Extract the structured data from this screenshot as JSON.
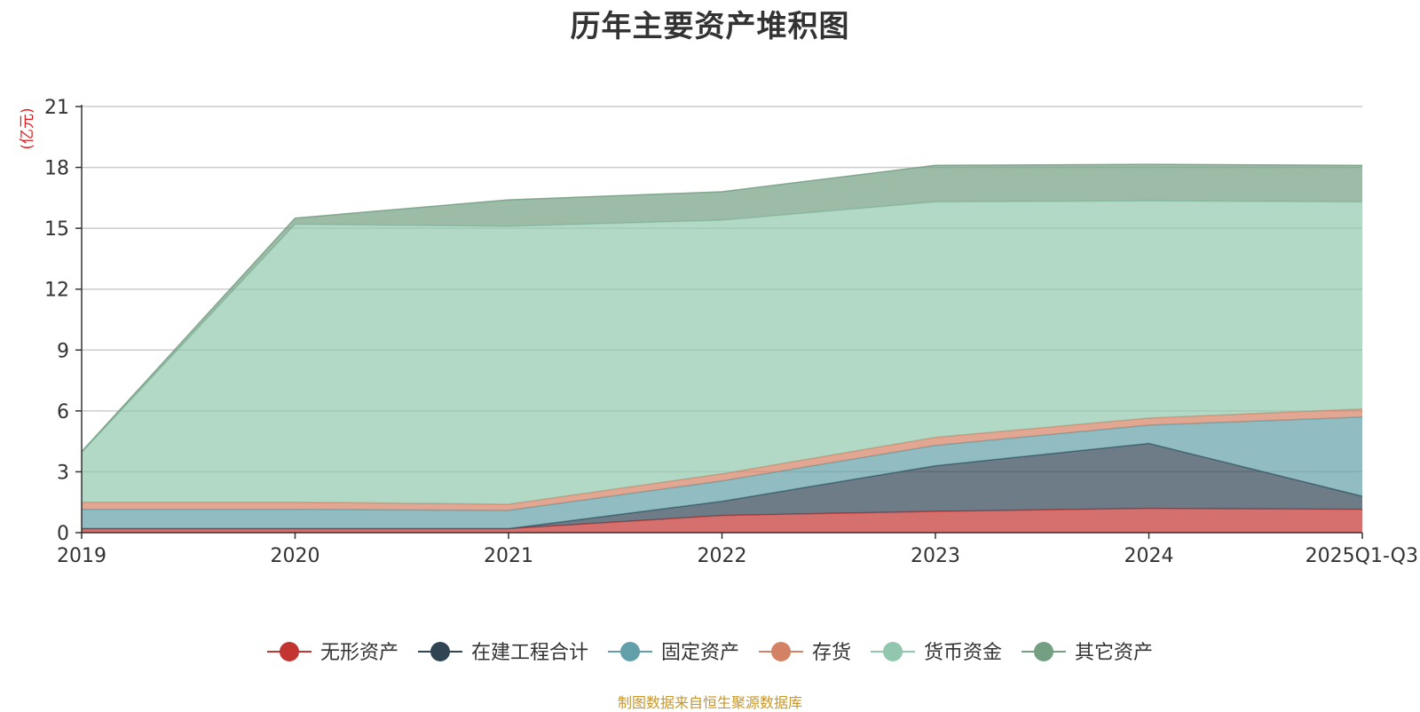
{
  "chart_data": {
    "type": "area",
    "stacked": true,
    "title": "历年主要资产堆积图",
    "unit_label": "(亿元)",
    "categories": [
      "2019",
      "2020",
      "2021",
      "2022",
      "2023",
      "2024",
      "2025Q1-Q3"
    ],
    "ylim": [
      0,
      21
    ],
    "yticks": [
      "0",
      "3",
      "6",
      "9",
      "12",
      "15",
      "18",
      "21"
    ],
    "grid": true,
    "legend_position": "bottom-center",
    "series": [
      {
        "name": "无形资产",
        "color": "#c23531",
        "values": [
          0.2,
          0.2,
          0.2,
          0.85,
          1.05,
          1.2,
          1.15
        ]
      },
      {
        "name": "在建工程合计",
        "color": "#2f4554",
        "values": [
          0.0,
          0.0,
          0.0,
          0.7,
          2.25,
          3.2,
          0.65
        ]
      },
      {
        "name": "固定资产",
        "color": "#61a0a8",
        "values": [
          0.95,
          0.95,
          0.9,
          1.0,
          1.0,
          0.9,
          3.9
        ]
      },
      {
        "name": "存货",
        "color": "#d48265",
        "values": [
          0.35,
          0.35,
          0.3,
          0.35,
          0.4,
          0.35,
          0.4
        ]
      },
      {
        "name": "货币资金",
        "color": "#91c7ae",
        "values": [
          2.45,
          13.7,
          13.7,
          12.5,
          11.6,
          10.7,
          10.2
        ]
      },
      {
        "name": "其它资产",
        "color": "#749f83",
        "values": [
          0.05,
          0.3,
          1.3,
          1.4,
          1.8,
          1.8,
          1.8
        ]
      }
    ],
    "source_note": "制图数据来自恒生聚源数据库"
  }
}
